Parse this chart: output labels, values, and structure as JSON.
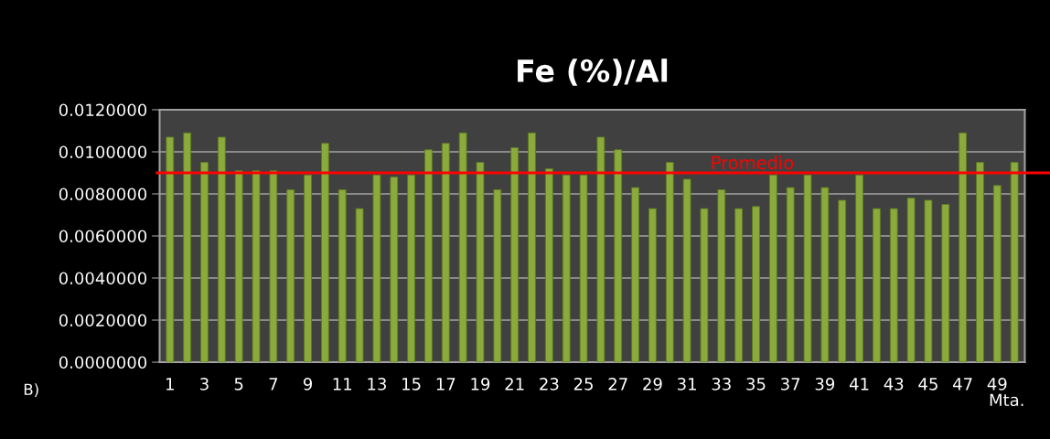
{
  "chart_data": {
    "type": "bar",
    "title": "Fe (%)/Al",
    "xlabel": "Mta.",
    "categories": [
      "1",
      null,
      "3",
      null,
      "5",
      null,
      "7",
      null,
      "9",
      null,
      "11",
      null,
      "13",
      null,
      "15",
      null,
      "17",
      null,
      "19",
      null,
      "21",
      null,
      "23",
      null,
      "25",
      null,
      "27",
      null,
      "29",
      null,
      "31",
      null,
      "33",
      null,
      "35",
      null,
      "37",
      null,
      "39",
      null,
      "41",
      null,
      "43",
      null,
      "45",
      null,
      "47",
      null,
      "49",
      null
    ],
    "values": [
      0.0107,
      0.0109,
      0.0095,
      0.0107,
      0.0091,
      0.0091,
      0.0091,
      0.0082,
      0.0089,
      0.0104,
      0.0082,
      0.0073,
      0.0089,
      0.0088,
      0.0089,
      0.0101,
      0.0104,
      0.0109,
      0.0095,
      0.0082,
      0.0102,
      0.0109,
      0.0092,
      0.0089,
      0.0089,
      0.0107,
      0.0101,
      0.0083,
      0.0073,
      0.0095,
      0.0087,
      0.0073,
      0.0082,
      0.0073,
      0.0074,
      0.0089,
      0.0083,
      0.0089,
      0.0083,
      0.0077,
      0.0089,
      0.0073,
      0.0073,
      0.0078,
      0.0077,
      0.0075,
      0.0109,
      0.0095,
      0.0084,
      0.0095
    ],
    "color": "#8aaa3c",
    "ylim": [
      0,
      0.012
    ],
    "yticks": [
      {
        "value": 0,
        "label": "0.0000000"
      },
      {
        "value": 0.002,
        "label": "0.0020000"
      },
      {
        "value": 0.004,
        "label": "0.0040000"
      },
      {
        "value": 0.006,
        "label": "0.0060000"
      },
      {
        "value": 0.008,
        "label": "0.0080000"
      },
      {
        "value": 0.01,
        "label": "0.0100000"
      },
      {
        "value": 0.012,
        "label": "0.0120000"
      }
    ],
    "grid": "y",
    "ref_lines": [
      {
        "axis": "y",
        "value": 0.009,
        "label": "Promedio",
        "color": "#ff0000"
      }
    ],
    "annotations": [
      "B)"
    ]
  }
}
